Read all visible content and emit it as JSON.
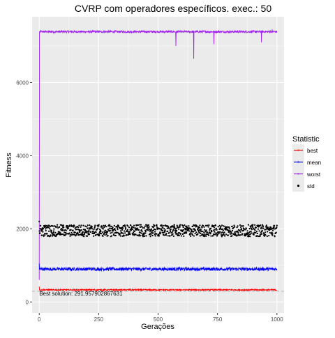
{
  "chart_data": {
    "type": "line",
    "title": "CVRP com operadores específicos. exec.: 50",
    "xlabel": "Gerações",
    "ylabel": "Fitness",
    "xlim": [
      -30,
      1030
    ],
    "ylim": [
      -300,
      7800
    ],
    "x_ticks": [
      0,
      250,
      500,
      750,
      1000
    ],
    "y_ticks": [
      0,
      2000,
      4000,
      6000
    ],
    "grid": true,
    "legend": {
      "title": "Statistic",
      "placement": "right",
      "entries": [
        "best",
        "mean",
        "worst",
        "std"
      ]
    },
    "colors": {
      "best": "#ff0000",
      "mean": "#0000ff",
      "worst": "#a020f0",
      "std": "#000000",
      "panel": "#ebebeb",
      "grid": "#ffffff",
      "hline": "#bdbdbd"
    },
    "hline": {
      "y": 291.957902867631,
      "style": "dashed"
    },
    "annotation": {
      "text": "Best solution: 291.957902867631",
      "x": 0,
      "y": 180
    },
    "series": [
      {
        "name": "best",
        "style": "line",
        "start": 420,
        "level": 330,
        "noise": 18
      },
      {
        "name": "mean",
        "style": "line",
        "start": 1050,
        "level": 900,
        "noise": 45
      },
      {
        "name": "worst",
        "style": "line",
        "start": 600,
        "level": 7390,
        "noise": 30,
        "spikes": [
          [
            575,
            7000
          ],
          [
            650,
            6650
          ],
          [
            735,
            7050
          ],
          [
            935,
            7100
          ],
          [
            980,
            7450
          ]
        ]
      },
      {
        "name": "std",
        "style": "points",
        "start": 2200,
        "level": 1950,
        "noise": 160
      }
    ]
  }
}
